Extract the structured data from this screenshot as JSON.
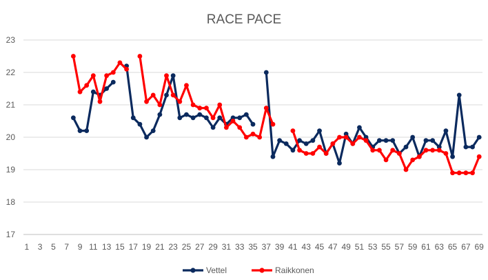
{
  "chart_data": {
    "type": "line",
    "title": "RACE PACE",
    "xlabel": "",
    "ylabel": "",
    "ylim": [
      17,
      23
    ],
    "y_ticks": [
      17,
      18,
      19,
      20,
      21,
      22,
      23
    ],
    "x_range": [
      1,
      69
    ],
    "x_tick_labels": [
      1,
      3,
      5,
      7,
      9,
      11,
      13,
      15,
      17,
      19,
      21,
      23,
      25,
      27,
      29,
      31,
      33,
      35,
      37,
      39,
      41,
      43,
      45,
      47,
      49,
      51,
      53,
      55,
      57,
      59,
      61,
      63,
      65,
      67,
      69
    ],
    "grid": "horizontal",
    "legend_position": "bottom",
    "series": [
      {
        "name": "Vettel",
        "color": "#0b2a5e",
        "x": [
          8,
          9,
          10,
          11,
          12,
          13,
          14,
          null,
          16,
          17,
          18,
          19,
          20,
          21,
          22,
          23,
          24,
          25,
          26,
          27,
          28,
          29,
          30,
          31,
          32,
          33,
          34,
          35,
          null,
          37,
          38,
          39,
          40,
          41,
          42,
          43,
          44,
          45,
          46,
          47,
          48,
          49,
          50,
          51,
          52,
          53,
          54,
          55,
          56,
          57,
          58,
          59,
          60,
          61,
          62,
          63,
          64,
          65,
          66,
          67,
          68,
          69
        ],
        "values": [
          20.6,
          20.2,
          20.2,
          21.4,
          21.3,
          21.5,
          21.7,
          null,
          22.2,
          20.6,
          20.4,
          20.0,
          20.2,
          20.7,
          21.3,
          21.9,
          20.6,
          20.7,
          20.6,
          20.7,
          20.6,
          20.3,
          20.6,
          20.4,
          20.6,
          20.6,
          20.7,
          20.4,
          null,
          22.0,
          19.4,
          19.9,
          19.8,
          19.6,
          19.9,
          19.8,
          19.9,
          20.2,
          19.5,
          19.8,
          19.2,
          20.1,
          19.8,
          20.3,
          20.0,
          19.7,
          19.9,
          19.9,
          19.9,
          19.5,
          19.7,
          20.0,
          19.4,
          19.9,
          19.9,
          19.7,
          20.2,
          19.4,
          21.3,
          19.7,
          19.7,
          20.0
        ]
      },
      {
        "name": "Raikkonen",
        "color": "#ff0000",
        "x": [
          8,
          9,
          10,
          11,
          12,
          13,
          14,
          15,
          16,
          null,
          18,
          19,
          20,
          21,
          22,
          23,
          24,
          25,
          26,
          27,
          28,
          29,
          30,
          31,
          32,
          33,
          34,
          35,
          36,
          37,
          38,
          null,
          41,
          42,
          43,
          44,
          45,
          46,
          47,
          48,
          49,
          50,
          51,
          52,
          53,
          54,
          55,
          56,
          57,
          58,
          59,
          60,
          61,
          62,
          63,
          64,
          65,
          66,
          67,
          68,
          69
        ],
        "values": [
          22.5,
          21.4,
          21.6,
          21.9,
          21.1,
          21.9,
          22.0,
          22.3,
          22.1,
          null,
          22.5,
          21.1,
          21.3,
          21.0,
          21.9,
          21.3,
          21.1,
          21.6,
          21.0,
          20.9,
          20.9,
          20.6,
          21.0,
          20.3,
          20.5,
          20.3,
          20.0,
          20.1,
          20.0,
          20.9,
          20.4,
          null,
          20.2,
          19.6,
          19.5,
          19.5,
          19.7,
          19.5,
          19.8,
          20.0,
          20.0,
          19.8,
          20.0,
          19.9,
          19.6,
          19.6,
          19.3,
          19.6,
          19.5,
          19.0,
          19.3,
          19.4,
          19.6,
          19.6,
          19.6,
          19.5,
          18.9,
          18.9,
          18.9,
          18.9,
          19.4
        ]
      }
    ]
  }
}
